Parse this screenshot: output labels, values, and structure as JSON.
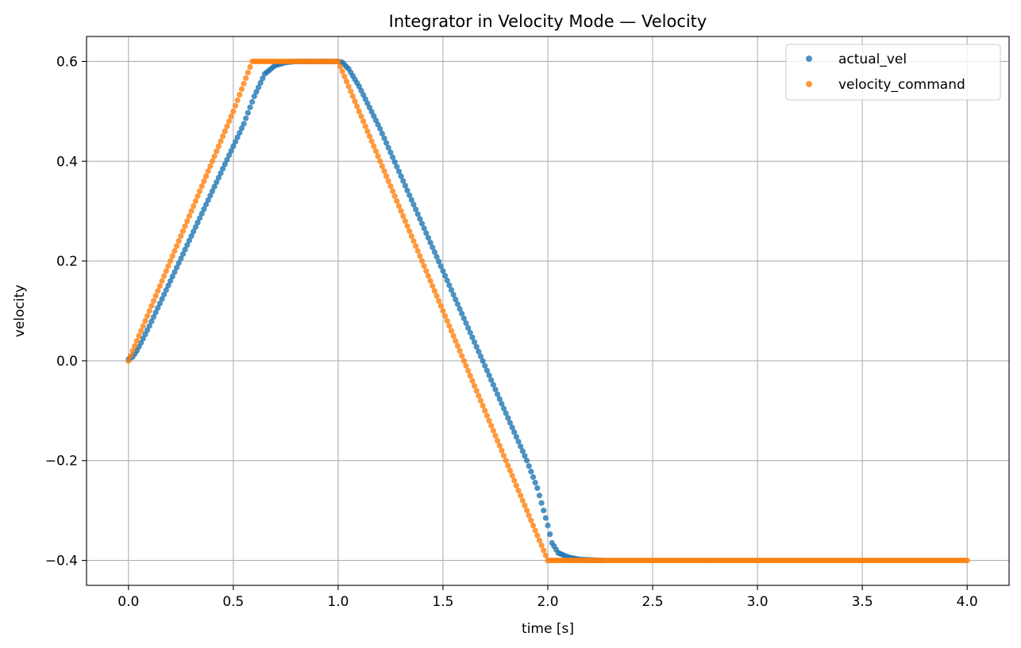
{
  "chart_data": {
    "type": "scatter",
    "title": "Integrator in Velocity Mode — Velocity",
    "xlabel": "time [s]",
    "ylabel": "velocity",
    "xlim": [
      -0.2,
      4.2
    ],
    "ylim": [
      -0.45,
      0.65
    ],
    "xticks": [
      0.0,
      0.5,
      1.0,
      1.5,
      2.0,
      2.5,
      3.0,
      3.5,
      4.0
    ],
    "xtick_labels": [
      "0.0",
      "0.5",
      "1.0",
      "1.5",
      "2.0",
      "2.5",
      "3.0",
      "3.5",
      "4.0"
    ],
    "yticks": [
      -0.4,
      -0.2,
      0.0,
      0.2,
      0.4,
      0.6
    ],
    "ytick_labels": [
      "−0.4",
      "−0.2",
      "0.0",
      "0.2",
      "0.4",
      "0.6"
    ],
    "grid": true,
    "legend_position": "top-right",
    "series": [
      {
        "name": "actual_vel",
        "color": "#1f77b4",
        "x": [
          0.0,
          0.02,
          0.04,
          0.06,
          0.08,
          0.1,
          0.15,
          0.2,
          0.25,
          0.3,
          0.35,
          0.4,
          0.45,
          0.5,
          0.55,
          0.6,
          0.65,
          0.7,
          0.75,
          0.8,
          0.9,
          1.0,
          1.02,
          1.05,
          1.1,
          1.2,
          1.3,
          1.4,
          1.5,
          1.6,
          1.7,
          1.8,
          1.9,
          1.95,
          2.0,
          2.02,
          2.05,
          2.1,
          2.15,
          2.2,
          2.25
        ],
        "y": [
          0.003,
          0.008,
          0.02,
          0.036,
          0.053,
          0.07,
          0.115,
          0.16,
          0.205,
          0.25,
          0.295,
          0.34,
          0.385,
          0.43,
          0.475,
          0.53,
          0.575,
          0.592,
          0.598,
          0.6,
          0.6,
          0.6,
          0.598,
          0.585,
          0.55,
          0.465,
          0.37,
          0.275,
          0.18,
          0.085,
          -0.01,
          -0.105,
          -0.2,
          -0.255,
          -0.33,
          -0.365,
          -0.385,
          -0.394,
          -0.398,
          -0.399,
          -0.4
        ]
      },
      {
        "name": "velocity_command",
        "color": "#ff7f0e",
        "x": [
          0.0,
          0.1,
          0.2,
          0.3,
          0.4,
          0.5,
          0.59,
          0.7,
          0.8,
          1.0,
          1.1,
          1.2,
          1.3,
          1.4,
          1.5,
          1.6,
          1.7,
          1.8,
          1.9,
          2.0,
          2.5,
          3.0,
          3.5,
          4.0
        ],
        "y": [
          0.0,
          0.1,
          0.2,
          0.3,
          0.4,
          0.5,
          0.6,
          0.6,
          0.6,
          0.6,
          0.5,
          0.4,
          0.3,
          0.2,
          0.1,
          0.0,
          -0.1,
          -0.2,
          -0.3,
          -0.4,
          -0.4,
          -0.4,
          -0.4,
          -0.4
        ]
      }
    ]
  }
}
